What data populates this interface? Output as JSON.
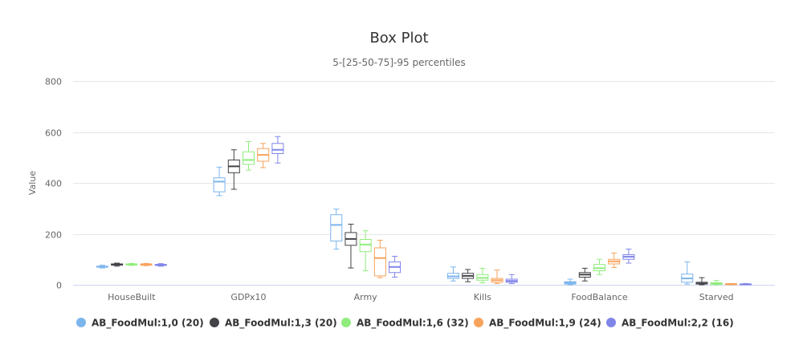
{
  "chart_data": {
    "type": "boxplot",
    "title": "Box Plot",
    "subtitle": "5-[25-50-75]-95 percentiles",
    "ylabel": "Value",
    "xlabel": "",
    "ylim": [
      0,
      800
    ],
    "yticks": [
      0,
      200,
      400,
      600,
      800
    ],
    "grid": true,
    "legend_position": "bottom-left",
    "categories": [
      "HouseBuilt",
      "GDPx10",
      "Army",
      "Kills",
      "FoodBalance",
      "Starved"
    ],
    "series": [
      {
        "name": "AB_FoodMul:1,0 (20)",
        "color": "#7cb5ec",
        "boxes": [
          [
            66,
            69,
            71,
            73,
            77
          ],
          [
            350,
            365,
            405,
            420,
            462
          ],
          [
            140,
            172,
            235,
            275,
            297
          ],
          [
            15,
            25,
            33,
            45,
            70
          ],
          [
            0,
            3,
            8,
            12,
            22
          ],
          [
            3,
            10,
            25,
            42,
            90
          ]
        ]
      },
      {
        "name": "AB_FoodMul:1,3 (20)",
        "color": "#434348",
        "boxes": [
          [
            73,
            77,
            80,
            82,
            85
          ],
          [
            375,
            440,
            465,
            490,
            530
          ],
          [
            66,
            155,
            180,
            205,
            238
          ],
          [
            12,
            25,
            35,
            45,
            60
          ],
          [
            15,
            30,
            40,
            48,
            65
          ],
          [
            0,
            3,
            5,
            10,
            28
          ]
        ]
      },
      {
        "name": "AB_FoodMul:1,6 (32)",
        "color": "#90ed7d",
        "boxes": [
          [
            76,
            78,
            80,
            82,
            84
          ],
          [
            450,
            473,
            490,
            522,
            562
          ],
          [
            55,
            130,
            158,
            178,
            212
          ],
          [
            8,
            18,
            27,
            40,
            65
          ],
          [
            40,
            55,
            65,
            80,
            100
          ],
          [
            0,
            2,
            5,
            8,
            17
          ]
        ]
      },
      {
        "name": "AB_FoodMul:1,9 (24)",
        "color": "#f7a35c",
        "boxes": [
          [
            75,
            77,
            80,
            82,
            84
          ],
          [
            460,
            485,
            510,
            535,
            555
          ],
          [
            28,
            35,
            105,
            145,
            175
          ],
          [
            5,
            10,
            18,
            25,
            58
          ],
          [
            68,
            82,
            92,
            100,
            125
          ],
          [
            0,
            1,
            3,
            4,
            5
          ]
        ]
      },
      {
        "name": "AB_FoodMul:2,2 (16)",
        "color": "#8085e9",
        "boxes": [
          [
            73,
            76,
            78,
            80,
            83
          ],
          [
            478,
            515,
            530,
            555,
            582
          ],
          [
            30,
            48,
            70,
            90,
            112
          ],
          [
            5,
            10,
            15,
            22,
            40
          ],
          [
            85,
            100,
            110,
            118,
            140
          ],
          [
            0,
            1,
            2,
            3,
            5
          ]
        ]
      }
    ]
  }
}
